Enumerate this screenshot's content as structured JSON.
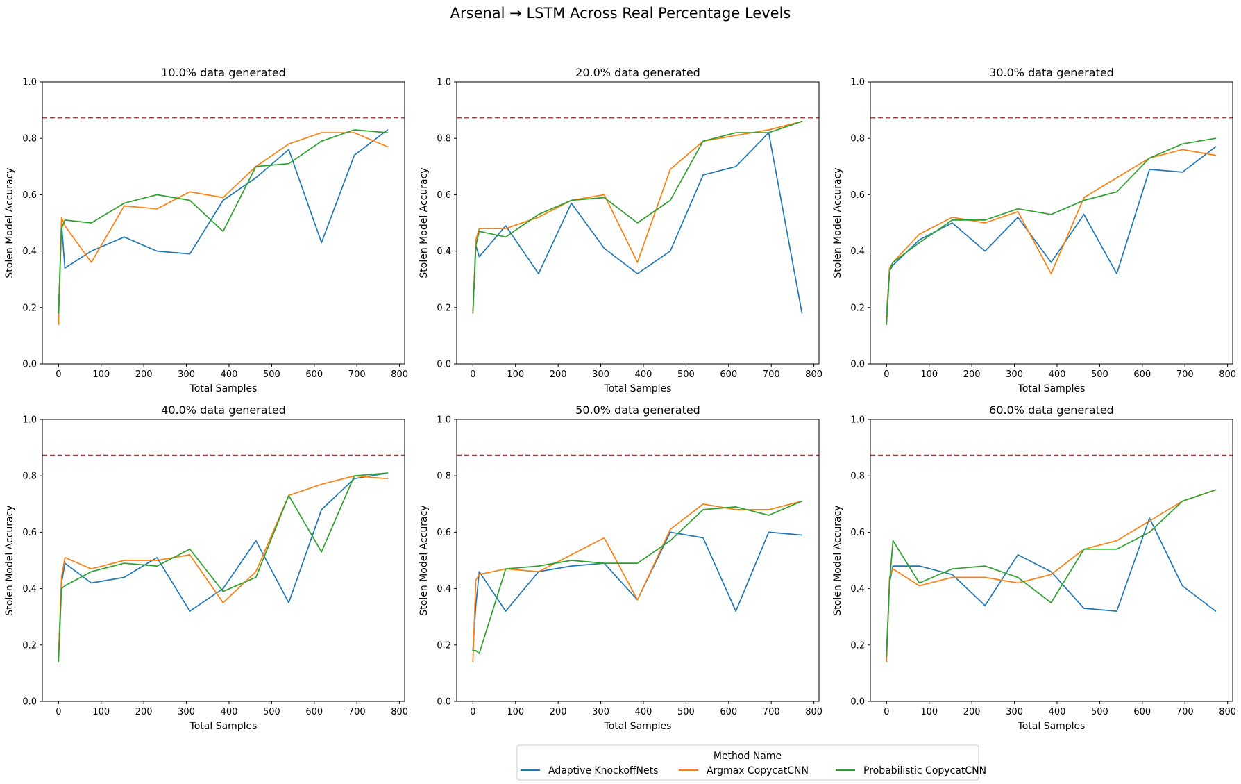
{
  "suptitle": "Arsenal → LSTM Across Real Percentage Levels",
  "colors": {
    "Adaptive KnockoffNets": "#1f77b4",
    "Argmax CopycatCNN": "#ff7f0e",
    "Probabilistic CopycatCNN": "#2ca02c",
    "reference_line": "#d62728",
    "axes": "#000000",
    "legend_border": "#cccccc"
  },
  "legend": {
    "title": "Method Name",
    "placement": "bottom-center",
    "entries": [
      "Adaptive KnockoffNets",
      "Argmax CopycatCNN",
      "Probabilistic CopycatCNN"
    ]
  },
  "chart_data": [
    {
      "type": "line",
      "title": "10.0% data generated",
      "xlabel": "Total Samples",
      "ylabel": "Stolen Model Accuracy",
      "xlim": [
        -38,
        812
      ],
      "ylim": [
        0,
        1.0
      ],
      "xticks": [
        0,
        100,
        200,
        300,
        400,
        500,
        600,
        700,
        800
      ],
      "yticks": [
        0.0,
        0.2,
        0.4,
        0.6,
        0.8,
        1.0
      ],
      "reference_line": 0.873,
      "grid": false,
      "series": [
        {
          "name": "Adaptive KnockoffNets",
          "x": [
            0,
            7,
            15,
            77,
            154,
            231,
            308,
            386,
            463,
            540,
            617,
            694,
            772
          ],
          "y": [
            0.18,
            0.5,
            0.34,
            0.4,
            0.45,
            0.4,
            0.39,
            0.58,
            0.66,
            0.76,
            0.43,
            0.74,
            0.83
          ]
        },
        {
          "name": "Argmax CopycatCNN",
          "x": [
            0,
            7,
            15,
            77,
            154,
            231,
            308,
            386,
            463,
            540,
            617,
            694,
            772
          ],
          "y": [
            0.14,
            0.52,
            0.49,
            0.36,
            0.56,
            0.55,
            0.61,
            0.59,
            0.7,
            0.78,
            0.82,
            0.82,
            0.77
          ]
        },
        {
          "name": "Probabilistic CopycatCNN",
          "x": [
            0,
            7,
            15,
            77,
            154,
            231,
            308,
            386,
            463,
            540,
            617,
            694,
            772
          ],
          "y": [
            0.18,
            0.48,
            0.51,
            0.5,
            0.57,
            0.6,
            0.58,
            0.47,
            0.7,
            0.71,
            0.79,
            0.83,
            0.82
          ]
        }
      ]
    },
    {
      "type": "line",
      "title": "20.0% data generated",
      "xlabel": "Total Samples",
      "ylabel": "Stolen Model Accuracy",
      "xlim": [
        -38,
        812
      ],
      "ylim": [
        0,
        1.0
      ],
      "xticks": [
        0,
        100,
        200,
        300,
        400,
        500,
        600,
        700,
        800
      ],
      "yticks": [
        0.0,
        0.2,
        0.4,
        0.6,
        0.8,
        1.0
      ],
      "reference_line": 0.873,
      "grid": false,
      "series": [
        {
          "name": "Adaptive KnockoffNets",
          "x": [
            0,
            7,
            15,
            77,
            154,
            231,
            308,
            386,
            463,
            540,
            617,
            694,
            772
          ],
          "y": [
            0.18,
            0.42,
            0.38,
            0.49,
            0.32,
            0.57,
            0.41,
            0.32,
            0.4,
            0.67,
            0.7,
            0.82,
            0.18
          ]
        },
        {
          "name": "Argmax CopycatCNN",
          "x": [
            0,
            7,
            15,
            77,
            154,
            231,
            308,
            386,
            463,
            540,
            617,
            694,
            772
          ],
          "y": [
            0.18,
            0.44,
            0.48,
            0.48,
            0.52,
            0.58,
            0.6,
            0.36,
            0.69,
            0.79,
            0.81,
            0.83,
            0.86
          ]
        },
        {
          "name": "Probabilistic CopycatCNN",
          "x": [
            0,
            7,
            15,
            77,
            154,
            231,
            308,
            386,
            463,
            540,
            617,
            694,
            772
          ],
          "y": [
            0.18,
            0.42,
            0.47,
            0.45,
            0.53,
            0.58,
            0.59,
            0.5,
            0.58,
            0.79,
            0.82,
            0.82,
            0.86
          ]
        }
      ]
    },
    {
      "type": "line",
      "title": "30.0% data generated",
      "xlabel": "Total Samples",
      "ylabel": "Stolen Model Accuracy",
      "xlim": [
        -38,
        812
      ],
      "ylim": [
        0,
        1.0
      ],
      "xticks": [
        0,
        100,
        200,
        300,
        400,
        500,
        600,
        700,
        800
      ],
      "yticks": [
        0.0,
        0.2,
        0.4,
        0.6,
        0.8,
        1.0
      ],
      "reference_line": 0.873,
      "grid": false,
      "series": [
        {
          "name": "Adaptive KnockoffNets",
          "x": [
            0,
            7,
            15,
            77,
            154,
            231,
            308,
            386,
            463,
            540,
            617,
            694,
            772
          ],
          "y": [
            0.18,
            0.33,
            0.35,
            0.44,
            0.5,
            0.4,
            0.52,
            0.36,
            0.53,
            0.32,
            0.69,
            0.68,
            0.77
          ]
        },
        {
          "name": "Argmax CopycatCNN",
          "x": [
            0,
            7,
            15,
            77,
            154,
            231,
            308,
            386,
            463,
            540,
            617,
            694,
            772
          ],
          "y": [
            0.16,
            0.34,
            0.36,
            0.46,
            0.52,
            0.5,
            0.54,
            0.32,
            0.59,
            0.66,
            0.73,
            0.76,
            0.74
          ]
        },
        {
          "name": "Probabilistic CopycatCNN",
          "x": [
            0,
            7,
            15,
            77,
            154,
            231,
            308,
            386,
            463,
            540,
            617,
            694,
            772
          ],
          "y": [
            0.14,
            0.33,
            0.36,
            0.43,
            0.51,
            0.51,
            0.55,
            0.53,
            0.58,
            0.61,
            0.73,
            0.78,
            0.8
          ]
        }
      ]
    },
    {
      "type": "line",
      "title": "40.0% data generated",
      "xlabel": "Total Samples",
      "ylabel": "Stolen Model Accuracy",
      "xlim": [
        -38,
        812
      ],
      "ylim": [
        0,
        1.0
      ],
      "xticks": [
        0,
        100,
        200,
        300,
        400,
        500,
        600,
        700,
        800
      ],
      "yticks": [
        0.0,
        0.2,
        0.4,
        0.6,
        0.8,
        1.0
      ],
      "reference_line": 0.873,
      "grid": false,
      "series": [
        {
          "name": "Adaptive KnockoffNets",
          "x": [
            0,
            7,
            15,
            77,
            154,
            231,
            308,
            386,
            463,
            540,
            617,
            694,
            772
          ],
          "y": [
            0.16,
            0.42,
            0.49,
            0.42,
            0.44,
            0.51,
            0.32,
            0.4,
            0.57,
            0.35,
            0.68,
            0.79,
            0.81
          ]
        },
        {
          "name": "Argmax CopycatCNN",
          "x": [
            0,
            7,
            15,
            77,
            154,
            231,
            308,
            386,
            463,
            540,
            617,
            694,
            772
          ],
          "y": [
            0.16,
            0.44,
            0.51,
            0.47,
            0.5,
            0.5,
            0.52,
            0.35,
            0.46,
            0.73,
            0.77,
            0.8,
            0.79
          ]
        },
        {
          "name": "Probabilistic CopycatCNN",
          "x": [
            0,
            7,
            15,
            77,
            154,
            231,
            308,
            386,
            463,
            540,
            617,
            694,
            772
          ],
          "y": [
            0.14,
            0.4,
            0.41,
            0.46,
            0.49,
            0.48,
            0.54,
            0.39,
            0.44,
            0.73,
            0.53,
            0.8,
            0.81
          ]
        }
      ]
    },
    {
      "type": "line",
      "title": "50.0% data generated",
      "xlabel": "Total Samples",
      "ylabel": "Stolen Model Accuracy",
      "xlim": [
        -38,
        812
      ],
      "ylim": [
        0,
        1.0
      ],
      "xticks": [
        0,
        100,
        200,
        300,
        400,
        500,
        600,
        700,
        800
      ],
      "yticks": [
        0.0,
        0.2,
        0.4,
        0.6,
        0.8,
        1.0
      ],
      "reference_line": 0.873,
      "grid": false,
      "series": [
        {
          "name": "Adaptive KnockoffNets",
          "x": [
            0,
            7,
            15,
            77,
            154,
            231,
            308,
            386,
            463,
            540,
            617,
            694,
            772
          ],
          "y": [
            0.18,
            0.34,
            0.46,
            0.32,
            0.46,
            0.48,
            0.49,
            0.36,
            0.6,
            0.58,
            0.32,
            0.6,
            0.59
          ]
        },
        {
          "name": "Argmax CopycatCNN",
          "x": [
            0,
            7,
            15,
            77,
            154,
            231,
            308,
            386,
            463,
            540,
            617,
            694,
            772
          ],
          "y": [
            0.14,
            0.43,
            0.45,
            0.47,
            0.46,
            0.52,
            0.58,
            0.36,
            0.61,
            0.7,
            0.68,
            0.68,
            0.71
          ]
        },
        {
          "name": "Probabilistic CopycatCNN",
          "x": [
            0,
            7,
            15,
            77,
            154,
            231,
            308,
            386,
            463,
            540,
            617,
            694,
            772
          ],
          "y": [
            0.18,
            0.18,
            0.17,
            0.47,
            0.48,
            0.5,
            0.49,
            0.49,
            0.57,
            0.68,
            0.69,
            0.66,
            0.71
          ]
        }
      ]
    },
    {
      "type": "line",
      "title": "60.0% data generated",
      "xlabel": "Total Samples",
      "ylabel": "Stolen Model Accuracy",
      "xlim": [
        -38,
        812
      ],
      "ylim": [
        0,
        1.0
      ],
      "xticks": [
        0,
        100,
        200,
        300,
        400,
        500,
        600,
        700,
        800
      ],
      "yticks": [
        0.0,
        0.2,
        0.4,
        0.6,
        0.8,
        1.0
      ],
      "reference_line": 0.873,
      "grid": false,
      "series": [
        {
          "name": "Adaptive KnockoffNets",
          "x": [
            0,
            7,
            15,
            77,
            154,
            231,
            308,
            386,
            463,
            540,
            617,
            694,
            772
          ],
          "y": [
            0.18,
            0.42,
            0.48,
            0.48,
            0.45,
            0.34,
            0.52,
            0.46,
            0.33,
            0.32,
            0.65,
            0.41,
            0.32
          ]
        },
        {
          "name": "Argmax CopycatCNN",
          "x": [
            0,
            7,
            15,
            77,
            154,
            231,
            308,
            386,
            463,
            540,
            617,
            694,
            772
          ],
          "y": [
            0.14,
            0.44,
            0.47,
            0.41,
            0.44,
            0.44,
            0.42,
            0.45,
            0.54,
            0.57,
            0.64,
            0.71,
            0.75
          ]
        },
        {
          "name": "Probabilistic CopycatCNN",
          "x": [
            0,
            7,
            15,
            77,
            154,
            231,
            308,
            386,
            463,
            540,
            617,
            694,
            772
          ],
          "y": [
            0.16,
            0.42,
            0.57,
            0.42,
            0.47,
            0.48,
            0.44,
            0.35,
            0.54,
            0.54,
            0.6,
            0.71,
            0.75
          ]
        }
      ]
    }
  ]
}
